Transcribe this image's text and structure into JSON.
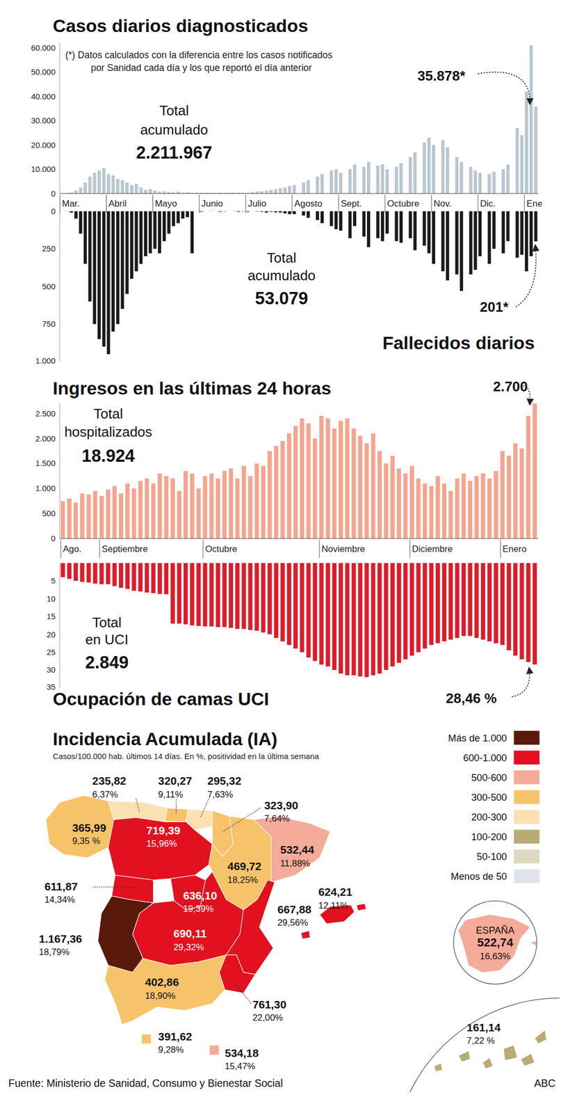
{
  "chart_data": [
    {
      "type": "bar",
      "title": "Casos diarios diagnosticados",
      "subtitle": [
        "(*) Datos calculados con la diferencia entre los casos notificados",
        "por Sanidad cada día y los que reportó el día anterior"
      ],
      "categories": [
        "Mar.",
        null,
        null,
        null,
        null,
        null,
        null,
        null,
        null,
        null,
        "Abril",
        null,
        null,
        null,
        null,
        null,
        null,
        null,
        null,
        null,
        "Mayo",
        null,
        null,
        null,
        null,
        null,
        null,
        null,
        null,
        null,
        "Junio",
        null,
        null,
        null,
        null,
        null,
        null,
        null,
        null,
        null,
        "Julio",
        null,
        null,
        null,
        null,
        null,
        null,
        null,
        null,
        null,
        "Agosto",
        null,
        null,
        null,
        null,
        null,
        null,
        null,
        null,
        null,
        "Sept.",
        null,
        null,
        null,
        null,
        null,
        null,
        null,
        null,
        null,
        "Octubre",
        null,
        null,
        null,
        null,
        null,
        null,
        null,
        null,
        null,
        "Nov.",
        null,
        null,
        null,
        null,
        null,
        null,
        null,
        null,
        null,
        "Dic.",
        null,
        null,
        null,
        null,
        null,
        null,
        null,
        null,
        null,
        "Ene.",
        null,
        null
      ],
      "values": [
        50,
        150,
        400,
        1200,
        2500,
        4500,
        7000,
        8500,
        9500,
        10500,
        8000,
        7500,
        6000,
        5500,
        4500,
        3500,
        4000,
        2500,
        1500,
        1800,
        1200,
        800,
        900,
        600,
        500,
        700,
        400,
        500,
        300,
        400,
        300,
        350,
        250,
        300,
        400,
        350,
        300,
        400,
        350,
        300,
        400,
        600,
        800,
        900,
        1200,
        1500,
        1800,
        2200,
        2500,
        3000,
        3500,
        0,
        4500,
        5500,
        0,
        7000,
        8000,
        0,
        9500,
        10000,
        8500,
        0,
        10000,
        12000,
        0,
        11000,
        13000,
        0,
        11500,
        12000,
        10000,
        0,
        11000,
        12500,
        0,
        15000,
        17000,
        0,
        21000,
        23000,
        20000,
        0,
        22000,
        19000,
        0,
        15000,
        13000,
        0,
        11000,
        9500,
        8500,
        0,
        8000,
        9000,
        0,
        10000,
        12000,
        0,
        27000,
        24000,
        42000,
        61000,
        35878
      ],
      "color": "#b8c6d2",
      "ylim": [
        0,
        62000
      ],
      "yticks": [
        0,
        {
          "value": 10000,
          "label": "10.000"
        },
        {
          "value": 20000,
          "label": "20.000"
        },
        {
          "value": 30000,
          "label": "30.000"
        },
        {
          "value": 40000,
          "label": "40.000"
        },
        {
          "value": 50000,
          "label": "50.000"
        },
        {
          "value": 60000,
          "label": "60.000"
        }
      ],
      "grid": false,
      "tick_labels": true,
      "annotations": [
        "Total acumulado",
        "2.211.967",
        "35.878*"
      ]
    },
    {
      "type": "bar",
      "title": "Fallecidos diarios",
      "categories": [
        "Mar.",
        null,
        null,
        null,
        null,
        null,
        null,
        null,
        null,
        null,
        "Abril",
        null,
        null,
        null,
        null,
        null,
        null,
        null,
        null,
        null,
        "Mayo",
        null,
        null,
        null,
        null,
        null,
        null,
        null,
        null,
        null,
        "Junio",
        null,
        null,
        null,
        null,
        null,
        null,
        null,
        null,
        null,
        "Julio",
        null,
        null,
        null,
        null,
        null,
        null,
        null,
        null,
        null,
        "Agosto",
        null,
        null,
        null,
        null,
        null,
        null,
        null,
        null,
        null,
        "Sept.",
        null,
        null,
        null,
        null,
        null,
        null,
        null,
        null,
        null,
        "Octubre",
        null,
        null,
        null,
        null,
        null,
        null,
        null,
        null,
        null,
        "Nov.",
        null,
        null,
        null,
        null,
        null,
        null,
        null,
        null,
        null,
        "Dic.",
        null,
        null,
        null,
        null,
        null,
        null,
        null,
        null,
        null,
        "Ene.",
        null,
        null
      ],
      "values": [
        0,
        2,
        10,
        50,
        150,
        350,
        600,
        750,
        850,
        900,
        950,
        800,
        750,
        650,
        550,
        450,
        400,
        350,
        300,
        280,
        250,
        280,
        200,
        150,
        100,
        80,
        50,
        40,
        280,
        0,
        5,
        0,
        2,
        0,
        5,
        3,
        0,
        2,
        5,
        3,
        5,
        0,
        3,
        5,
        10,
        5,
        8,
        10,
        15,
        20,
        20,
        0,
        30,
        45,
        0,
        60,
        80,
        0,
        100,
        120,
        130,
        0,
        180,
        100,
        0,
        170,
        240,
        0,
        180,
        200,
        150,
        0,
        200,
        210,
        0,
        180,
        260,
        0,
        230,
        280,
        350,
        0,
        400,
        460,
        0,
        420,
        530,
        0,
        420,
        390,
        300,
        0,
        350,
        250,
        0,
        280,
        200,
        0,
        310,
        290,
        400,
        300,
        201
      ],
      "color": "#1a1a1a",
      "ylim": [
        0,
        1000
      ],
      "yticks": [
        0,
        250,
        500,
        750,
        {
          "value": 1000,
          "label": "1.000"
        }
      ],
      "grid": false,
      "tick_labels": "y",
      "annotations": [
        "Total acumulado",
        "53.079",
        "201*"
      ]
    },
    {
      "type": "bar",
      "title": "Ingresos en las últimas 24 horas",
      "categories": [
        "Ago.",
        null,
        null,
        null,
        null,
        null,
        "Septiembre",
        null,
        null,
        null,
        null,
        null,
        null,
        null,
        null,
        null,
        null,
        null,
        null,
        null,
        null,
        null,
        "Octubre",
        null,
        null,
        null,
        null,
        null,
        null,
        null,
        null,
        null,
        null,
        null,
        null,
        null,
        null,
        null,
        null,
        null,
        "Noviembre",
        null,
        null,
        null,
        null,
        null,
        null,
        null,
        null,
        null,
        null,
        null,
        null,
        null,
        "Diciembre",
        null,
        null,
        null,
        null,
        null,
        null,
        null,
        null,
        null,
        null,
        null,
        null,
        null,
        "Enero",
        null,
        null,
        null,
        null,
        null
      ],
      "values": [
        750,
        800,
        720,
        900,
        880,
        950,
        850,
        980,
        1050,
        900,
        1100,
        1000,
        1150,
        1200,
        1100,
        1300,
        1250,
        1200,
        950,
        1350,
        1300,
        1000,
        1250,
        1300,
        1200,
        1350,
        1400,
        1200,
        1450,
        1250,
        1500,
        1450,
        1750,
        1850,
        1950,
        2100,
        2250,
        2400,
        2300,
        2000,
        2450,
        2400,
        2200,
        2350,
        2400,
        2200,
        2050,
        1900,
        2100,
        1750,
        1500,
        1650,
        1400,
        1300,
        1450,
        1200,
        1100,
        1050,
        1250,
        1100,
        950,
        1200,
        1300,
        1150,
        1250,
        1300,
        1200,
        1350,
        1750,
        1650,
        1900,
        1800,
        2450,
        2700
      ],
      "color": "#f4a58f",
      "ylim": [
        0,
        2700
      ],
      "yticks": [
        0,
        500,
        {
          "value": 1000,
          "label": "1.000"
        },
        {
          "value": 1500,
          "label": "1.500"
        },
        {
          "value": 2000,
          "label": "2.000"
        },
        {
          "value": 2500,
          "label": "2.500"
        }
      ],
      "grid": false,
      "tick_labels": true,
      "annotations": [
        "Total hospitalizados",
        "18.924",
        "2.700"
      ]
    },
    {
      "type": "bar",
      "title": "Ocupación de camas UCI",
      "categories": [
        "Ago.",
        null,
        null,
        null,
        null,
        null,
        "Septiembre",
        null,
        null,
        null,
        null,
        null,
        null,
        null,
        null,
        null,
        null,
        null,
        null,
        null,
        null,
        null,
        "Octubre",
        null,
        null,
        null,
        null,
        null,
        null,
        null,
        null,
        null,
        null,
        null,
        null,
        null,
        null,
        null,
        null,
        null,
        "Noviembre",
        null,
        null,
        null,
        null,
        null,
        null,
        null,
        null,
        null,
        null,
        null,
        null,
        null,
        "Diciembre",
        null,
        null,
        null,
        null,
        null,
        null,
        null,
        null,
        null,
        null,
        null,
        null,
        null,
        "Enero",
        null,
        null,
        null,
        null,
        null
      ],
      "values": [
        4,
        4.5,
        5,
        5.3,
        5.5,
        5.8,
        6,
        6,
        6.5,
        7,
        7.3,
        7.8,
        8,
        8.3,
        8.5,
        8.7,
        8.8,
        17,
        17,
        17.2,
        17.5,
        17.7,
        17.8,
        17.8,
        18,
        18,
        18.2,
        18.5,
        18.5,
        18.8,
        19,
        19.5,
        20,
        21,
        22,
        23,
        24,
        25,
        26.5,
        27.5,
        28.5,
        29,
        30,
        31,
        31.5,
        31.5,
        31.8,
        32,
        31.5,
        31,
        30,
        29,
        28,
        27,
        26,
        25,
        24,
        23,
        22.5,
        22,
        21.5,
        21,
        20.5,
        20.5,
        21,
        21.5,
        22,
        22.5,
        23,
        24.5,
        26,
        27,
        27.8,
        28.46
      ],
      "color": "#dd1c2a",
      "ylim": [
        0,
        35
      ],
      "yticks": [
        0,
        5,
        10,
        15,
        20,
        25,
        30,
        35
      ],
      "grid": false,
      "tick_labels": "y",
      "annotations": [
        "Total en UCI",
        "2.849",
        "28,46 %"
      ]
    }
  ],
  "map": {
    "title": "Incidencia Acumulada (IA)",
    "subtitle": "Casos/100.000 hab. últimos 14 días. En %, positividad en la última semana",
    "legend": [
      {
        "label": "Más de 1.000",
        "color": "#5a1a0b",
        "min": 1000,
        "max": null
      },
      {
        "label": "600-1.000",
        "color": "#e2111f",
        "min": 600,
        "max": 1000
      },
      {
        "label": "500-600",
        "color": "#f5ab99",
        "min": 500,
        "max": 600
      },
      {
        "label": "300-500",
        "color": "#f7c36a",
        "min": 300,
        "max": 500
      },
      {
        "label": "200-300",
        "color": "#fbe1b1",
        "min": 200,
        "max": 300
      },
      {
        "label": "100-200",
        "color": "#b9ab74",
        "min": 100,
        "max": 200
      },
      {
        "label": "50-100",
        "color": "#ddd8bf",
        "min": 50,
        "max": 100
      },
      {
        "label": "Menos de 50",
        "color": "#dfe4ea",
        "min": null,
        "max": 50
      }
    ],
    "total": {
      "name": "ESPAÑA",
      "value": 522.74,
      "label": "522,74",
      "positivity": 16.63,
      "positivity_label": "16,63%"
    },
    "regions": [
      {
        "value": 365.99,
        "label": "365,99",
        "positivity": 9.35,
        "positivity_label": "9,35 %"
      },
      {
        "value": 235.82,
        "label": "235,82",
        "positivity": 6.37,
        "positivity_label": "6,37%"
      },
      {
        "value": 320.27,
        "label": "320,27",
        "positivity": 9.11,
        "positivity_label": "9,11%"
      },
      {
        "value": 295.32,
        "label": "295,32",
        "positivity": 7.63,
        "positivity_label": "7,63%"
      },
      {
        "value": 323.9,
        "label": "323,90",
        "positivity": 7.64,
        "positivity_label": "7,64%"
      },
      {
        "value": 719.39,
        "label": "719,39",
        "positivity": 15.96,
        "positivity_label": "15,96%"
      },
      {
        "value": 611.87,
        "label": "611,87",
        "positivity": 14.34,
        "positivity_label": "14,34%"
      },
      {
        "value": 469.72,
        "label": "469,72",
        "positivity": 18.25,
        "positivity_label": "18,25%"
      },
      {
        "value": 532.44,
        "label": "532,44",
        "positivity": 11.88,
        "positivity_label": "11,88%"
      },
      {
        "value": 624.21,
        "label": "624,21",
        "positivity": 12.11,
        "positivity_label": "12,11%"
      },
      {
        "value": 636.1,
        "label": "636,10",
        "positivity": 19.39,
        "positivity_label": "19,39%"
      },
      {
        "value": 690.11,
        "label": "690,11",
        "positivity": 29.32,
        "positivity_label": "29,32%"
      },
      {
        "value": 667.88,
        "label": "667,88",
        "positivity": 29.56,
        "positivity_label": "29,56%"
      },
      {
        "value": 761.3,
        "label": "761,30",
        "positivity": 22.0,
        "positivity_label": "22,00%"
      },
      {
        "value": 1167.36,
        "label": "1.167,36",
        "positivity": 18.79,
        "positivity_label": "18,79%"
      },
      {
        "value": 402.86,
        "label": "402,86",
        "positivity": 18.9,
        "positivity_label": "18,90%"
      },
      {
        "value": 391.62,
        "label": "391,62",
        "positivity": 9.28,
        "positivity_label": "9,28%"
      },
      {
        "value": 534.18,
        "label": "534,18",
        "positivity": 15.47,
        "positivity_label": "15,47%"
      },
      {
        "value": 161.14,
        "label": "161,14",
        "positivity": 7.22,
        "positivity_label": "7,22 %"
      }
    ]
  },
  "source": "Fuente: Ministerio de Sanidad, Consumo y Bienestar Social",
  "credit": "ABC"
}
